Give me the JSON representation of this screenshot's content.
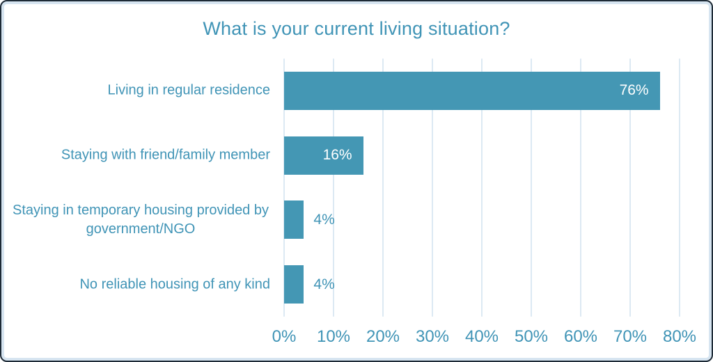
{
  "chart_data": {
    "type": "bar",
    "orientation": "horizontal",
    "title": "What is your current living situation?",
    "categories": [
      "Living in regular residence",
      "Staying with friend/family member",
      "Staying in temporary housing provided by\ngovernment/NGO",
      "No reliable housing of any kind"
    ],
    "values": [
      76,
      16,
      4,
      4
    ],
    "value_labels": [
      "76%",
      "16%",
      "4%",
      "4%"
    ],
    "x_ticks": [
      "0%",
      "10%",
      "20%",
      "30%",
      "40%",
      "50%",
      "60%",
      "70%",
      "80%"
    ],
    "x_tick_values": [
      0,
      10,
      20,
      30,
      40,
      50,
      60,
      70,
      80
    ],
    "xlim": [
      0,
      80
    ],
    "grid": true,
    "legend": "none",
    "xlabel": "",
    "ylabel": "",
    "colors": {
      "bar": "#4497b4",
      "text": "#4094b6",
      "gridline": "#dce9f3",
      "inside_value_label": "#ffffff",
      "frame_border": "#1d2a36",
      "frame_inner_border": "#d7e5f1",
      "background": "#ffffff"
    }
  }
}
